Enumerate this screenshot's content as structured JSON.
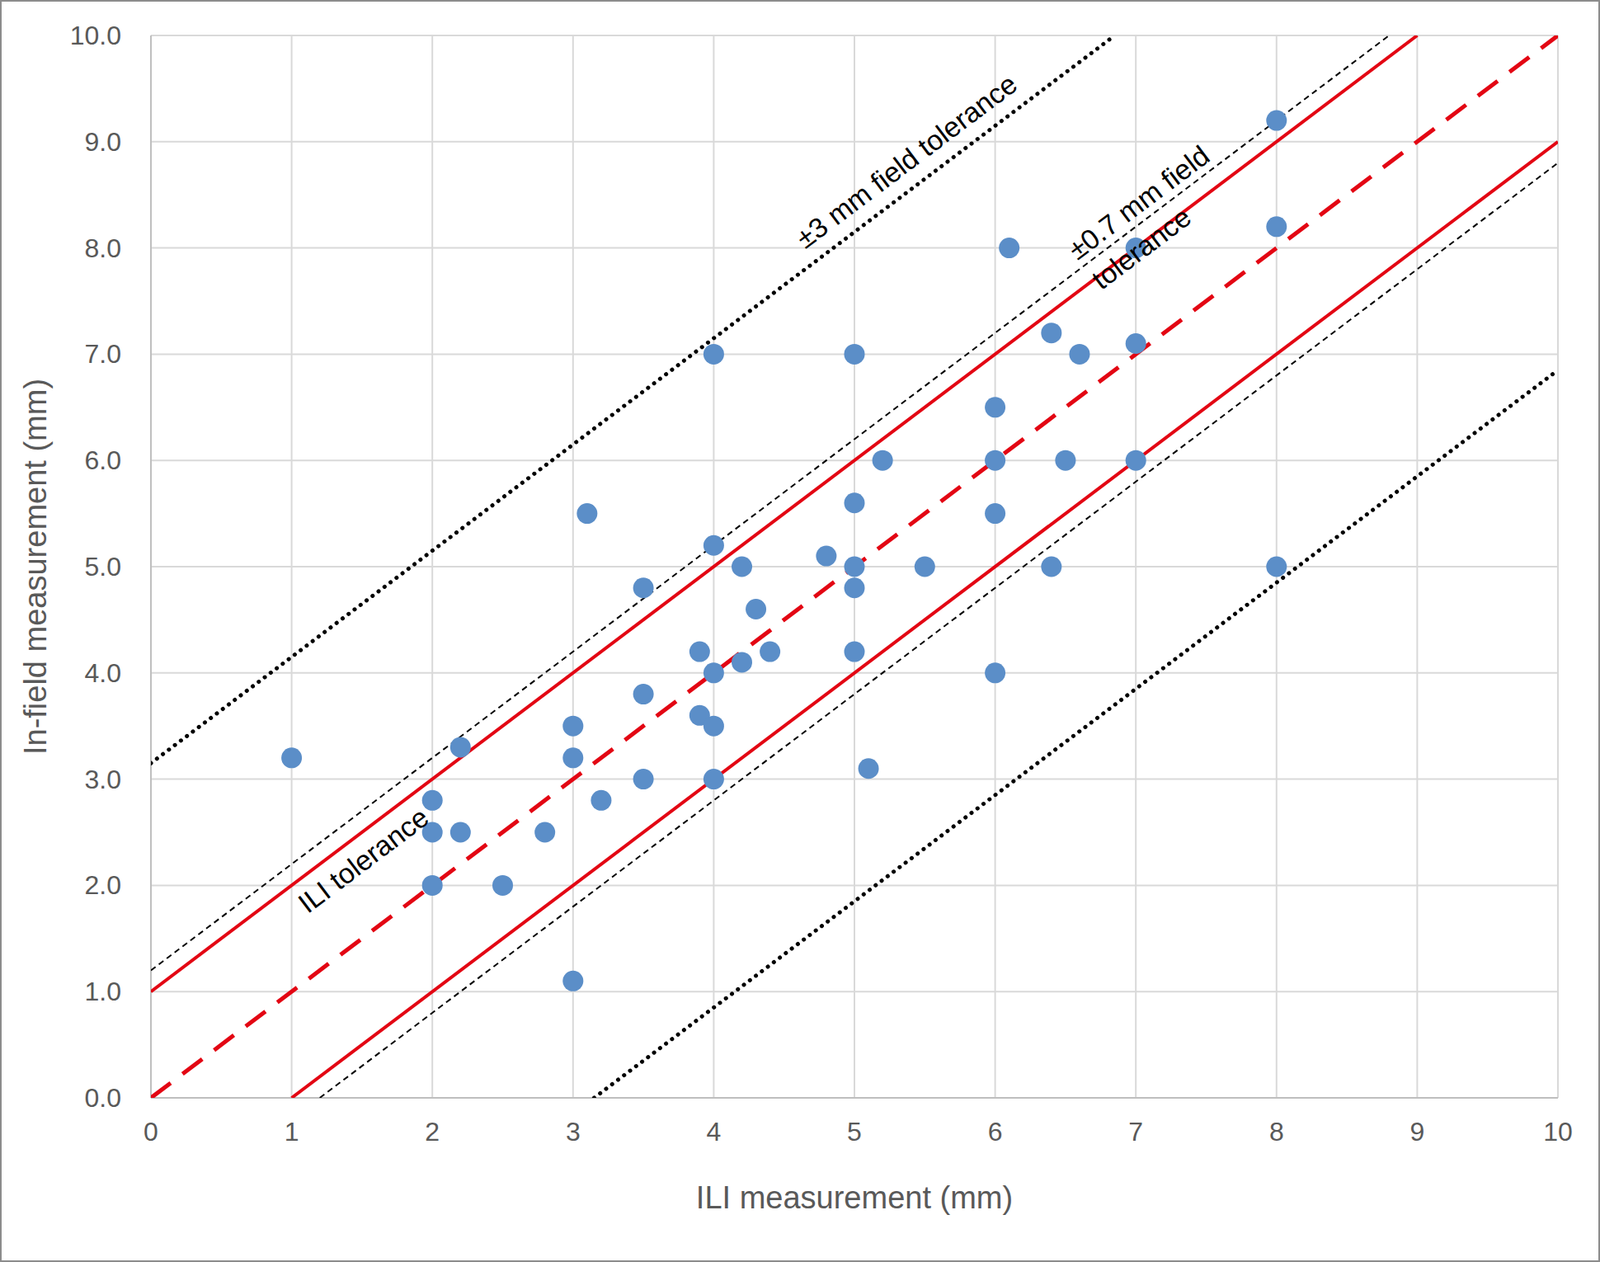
{
  "chart_data": {
    "type": "scatter",
    "x_label": "ILI measurement (mm)",
    "y_label": "In-field measurement (mm)",
    "xlim": [
      0,
      10
    ],
    "ylim": [
      0,
      10
    ],
    "xticks": [
      0,
      1,
      2,
      3,
      4,
      5,
      6,
      7,
      8,
      9,
      10
    ],
    "yticks": [
      {
        "value": 0,
        "label": "0.0"
      },
      {
        "value": 1,
        "label": "1.0"
      },
      {
        "value": 2,
        "label": "2.0"
      },
      {
        "value": 3,
        "label": "3.0"
      },
      {
        "value": 4,
        "label": "4.0"
      },
      {
        "value": 5,
        "label": "5.0"
      },
      {
        "value": 6,
        "label": "6.0"
      },
      {
        "value": 7,
        "label": "7.0"
      },
      {
        "value": 8,
        "label": "8.0"
      },
      {
        "value": 9,
        "label": "9.0"
      },
      {
        "value": 10,
        "label": "10.0"
      }
    ],
    "grid": true,
    "series": [
      {
        "type": "scatter",
        "color": "#5b8ec8",
        "marker": "circle",
        "x": [
          1,
          2,
          2,
          2,
          2.2,
          2.2,
          2.5,
          2.8,
          3,
          3,
          3,
          3.1,
          3.2,
          3.5,
          3.5,
          3.5,
          3.9,
          3.9,
          4,
          4,
          4,
          4,
          4,
          4.2,
          4.2,
          4.3,
          4.4,
          4.8,
          5,
          5,
          5,
          5,
          5,
          5.1,
          5.2,
          5.5,
          6,
          6,
          6,
          6,
          6.1,
          6.4,
          6.4,
          6.5,
          6.6,
          7,
          7,
          7,
          8,
          8,
          8
        ],
        "values": [
          3.2,
          2.8,
          2.5,
          2.0,
          3.3,
          2.5,
          2.0,
          2.5,
          3.5,
          3.2,
          1.1,
          5.5,
          2.8,
          4.8,
          3.8,
          3.0,
          4.2,
          3.6,
          7.0,
          5.2,
          4.0,
          3.5,
          3.0,
          5.0,
          4.1,
          4.6,
          4.2,
          5.1,
          7.0,
          5.6,
          5.0,
          4.8,
          4.2,
          3.1,
          6.0,
          5.0,
          6.5,
          6.0,
          5.5,
          4.0,
          8.0,
          7.2,
          5.0,
          6.0,
          7.0,
          8.0,
          7.1,
          6.0,
          9.2,
          8.2,
          5.0
        ]
      },
      {
        "type": "line",
        "color": "#e30613",
        "line_style": "dashed",
        "x": [
          0,
          10
        ],
        "values": [
          0,
          10
        ]
      },
      {
        "type": "line",
        "color": "#e30613",
        "line_style": "solid",
        "x": [
          0,
          9
        ],
        "values": [
          1,
          10
        ]
      },
      {
        "type": "line",
        "color": "#e30613",
        "line_style": "solid",
        "x": [
          1,
          10
        ],
        "values": [
          0,
          9
        ]
      },
      {
        "type": "line",
        "color": "#000000",
        "line_style": "dashed",
        "x": [
          0,
          8.8
        ],
        "values": [
          1.2,
          10
        ]
      },
      {
        "type": "line",
        "color": "#000000",
        "line_style": "dashed",
        "x": [
          1.2,
          10
        ],
        "values": [
          0,
          8.8
        ]
      },
      {
        "type": "line",
        "color": "#000000",
        "line_style": "dotted",
        "x": [
          0,
          6.85
        ],
        "values": [
          3.15,
          10
        ]
      },
      {
        "type": "line",
        "color": "#000000",
        "line_style": "dotted",
        "x": [
          3.15,
          10
        ],
        "values": [
          0,
          6.85
        ]
      }
    ],
    "annotations": [
      {
        "text": "±3 mm field tolerance",
        "x": 5.38,
        "y": 8.8
      },
      {
        "text": "±0.7 mm field",
        "x": 7.03,
        "y": 8.41
      },
      {
        "text": "tolerance",
        "x": 7.05,
        "y": 7.98
      },
      {
        "text": "ILI tolerance",
        "x": 1.52,
        "y": 2.22
      }
    ]
  }
}
